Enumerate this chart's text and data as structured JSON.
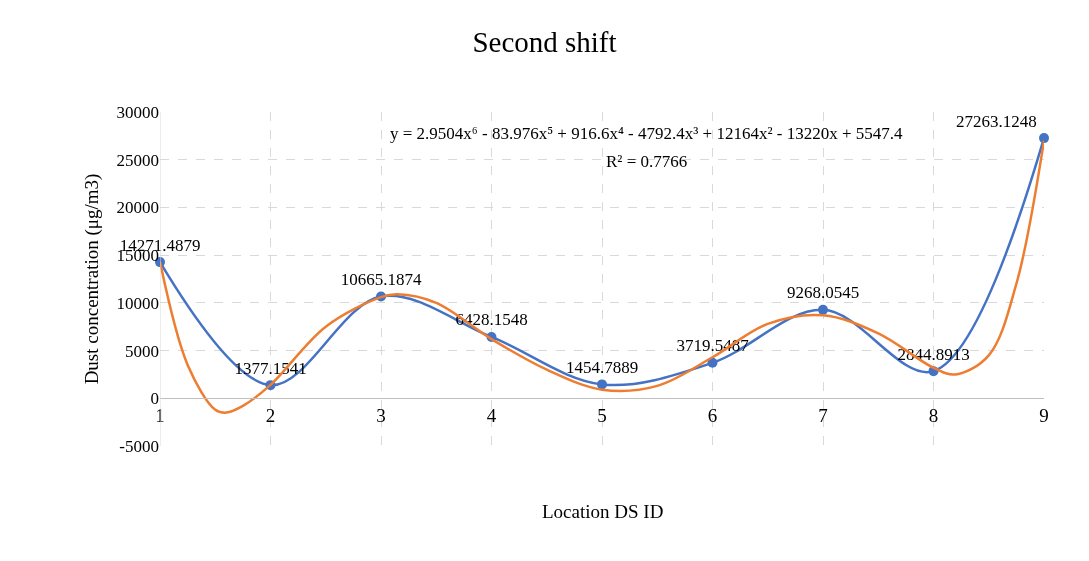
{
  "chart_data": {
    "type": "line",
    "title": "Second shift",
    "xlabel": "Location DS ID",
    "ylabel": "Dust concentration (μg/m3)",
    "x": [
      1,
      2,
      3,
      4,
      5,
      6,
      7,
      8,
      9
    ],
    "series": [
      {
        "color": "#4472c4",
        "values": [
          14271.4879,
          1377.1541,
          10665.1874,
          6428.1548,
          1454.7889,
          3719.5487,
          9268.0545,
          2844.8913,
          27263.1248
        ],
        "value_labels": [
          "14271.4879",
          "1377.1541",
          "10665.1874",
          "6428.1548",
          "1454.7889",
          "3719.5487",
          "9268.0545",
          "2844.8913",
          "27263.1248"
        ],
        "marker": "circle"
      },
      {
        "type": "line",
        "color": "#ed7d31",
        "marker": "none",
        "x": [
          1,
          1.25,
          1.5,
          1.6,
          1.75,
          2,
          2.5,
          3,
          3.15,
          3.5,
          4,
          4.5,
          5,
          5.5,
          6,
          6.5,
          7,
          7.5,
          8,
          8.2,
          8.5,
          8.75,
          9
        ],
        "values": [
          14300,
          3500,
          -1200,
          -1500,
          -800,
          1400,
          7500,
          10600,
          10900,
          10000,
          6200,
          3000,
          900,
          1300,
          4300,
          7800,
          8700,
          6800,
          3200,
          2500,
          4500,
          12000,
          27000
        ]
      }
    ],
    "xlim": [
      1,
      9
    ],
    "xticks": [
      1,
      2,
      3,
      4,
      5,
      6,
      7,
      8,
      9
    ],
    "ylim": [
      -5000,
      30000
    ],
    "yticks": [
      -5000,
      0,
      5000,
      10000,
      15000,
      20000,
      25000,
      30000
    ],
    "grid": true,
    "line_style": "solid",
    "annotations": [
      "y = 2.9504x⁶ - 83.976x⁵ + 916.6x⁴ - 4792.4x³ + 12164x² - 13220x + 5547.4",
      "R² = 0.7766"
    ]
  }
}
